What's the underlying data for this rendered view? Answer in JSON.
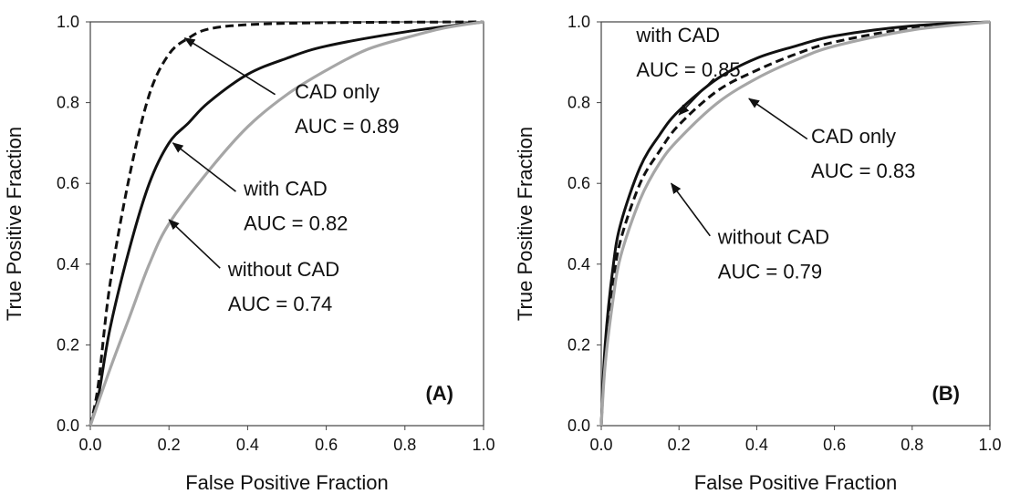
{
  "chart_data": [
    {
      "type": "line",
      "panel_label": "(A)",
      "xlabel": "False Positive Fraction",
      "ylabel": "True Positive Fraction",
      "xlim": [
        0,
        1
      ],
      "ylim": [
        0,
        1
      ],
      "x_ticks": [
        "0.0",
        "0.2",
        "0.4",
        "0.6",
        "0.8",
        "1.0"
      ],
      "y_ticks": [
        "0.0",
        "0.2",
        "0.4",
        "0.6",
        "0.8",
        "1.0"
      ],
      "grid": false,
      "series": [
        {
          "key": "cad-only",
          "style": "dashed",
          "color": "#111111",
          "points": [
            [
              0,
              0
            ],
            [
              0.02,
              0.1
            ],
            [
              0.05,
              0.35
            ],
            [
              0.1,
              0.62
            ],
            [
              0.15,
              0.82
            ],
            [
              0.2,
              0.92
            ],
            [
              0.25,
              0.96
            ],
            [
              0.3,
              0.982
            ],
            [
              0.4,
              0.993
            ],
            [
              0.6,
              0.998
            ],
            [
              1,
              1
            ]
          ]
        },
        {
          "key": "with-cad",
          "style": "solid",
          "color": "#111111",
          "points": [
            [
              0,
              0
            ],
            [
              0.02,
              0.07
            ],
            [
              0.05,
              0.24
            ],
            [
              0.1,
              0.44
            ],
            [
              0.15,
              0.6
            ],
            [
              0.2,
              0.7
            ],
            [
              0.25,
              0.75
            ],
            [
              0.3,
              0.8
            ],
            [
              0.4,
              0.87
            ],
            [
              0.5,
              0.91
            ],
            [
              0.6,
              0.94
            ],
            [
              0.8,
              0.975
            ],
            [
              1,
              1
            ]
          ]
        },
        {
          "key": "without-cad",
          "style": "solid",
          "color": "#a6a6a6",
          "points": [
            [
              0,
              0
            ],
            [
              0.05,
              0.14
            ],
            [
              0.1,
              0.27
            ],
            [
              0.15,
              0.4
            ],
            [
              0.2,
              0.5
            ],
            [
              0.3,
              0.63
            ],
            [
              0.4,
              0.74
            ],
            [
              0.5,
              0.82
            ],
            [
              0.6,
              0.88
            ],
            [
              0.7,
              0.93
            ],
            [
              0.8,
              0.96
            ],
            [
              0.9,
              0.985
            ],
            [
              1,
              1
            ]
          ]
        }
      ],
      "annotations": [
        {
          "name": "CAD only",
          "auc": "AUC = 0.89",
          "text_at": [
            0.52,
            0.81
          ],
          "arrow_from": [
            0.47,
            0.82
          ],
          "arrow_to": [
            0.24,
            0.96
          ]
        },
        {
          "name": "with CAD",
          "auc": "AUC = 0.82",
          "text_at": [
            0.39,
            0.57
          ],
          "arrow_from": [
            0.37,
            0.58
          ],
          "arrow_to": [
            0.21,
            0.7
          ]
        },
        {
          "name": "without CAD",
          "auc": "AUC = 0.74",
          "text_at": [
            0.35,
            0.37
          ],
          "arrow_from": [
            0.33,
            0.39
          ],
          "arrow_to": [
            0.2,
            0.51
          ]
        }
      ]
    },
    {
      "type": "line",
      "panel_label": "(B)",
      "xlabel": "False Positive Fraction",
      "ylabel": "True Positive Fraction",
      "xlim": [
        0,
        1
      ],
      "ylim": [
        0,
        1
      ],
      "x_ticks": [
        "0.0",
        "0.2",
        "0.4",
        "0.6",
        "0.8",
        "1.0"
      ],
      "y_ticks": [
        "0.0",
        "0.2",
        "0.4",
        "0.6",
        "0.8",
        "1.0"
      ],
      "grid": false,
      "series": [
        {
          "key": "with-cad",
          "style": "solid",
          "color": "#111111",
          "points": [
            [
              0,
              0
            ],
            [
              0.01,
              0.2
            ],
            [
              0.03,
              0.39
            ],
            [
              0.05,
              0.5
            ],
            [
              0.1,
              0.64
            ],
            [
              0.15,
              0.72
            ],
            [
              0.2,
              0.78
            ],
            [
              0.3,
              0.86
            ],
            [
              0.4,
              0.91
            ],
            [
              0.5,
              0.94
            ],
            [
              0.6,
              0.965
            ],
            [
              0.8,
              0.99
            ],
            [
              1,
              1
            ]
          ]
        },
        {
          "key": "cad-only",
          "style": "dashed",
          "color": "#111111",
          "points": [
            [
              0,
              0
            ],
            [
              0.01,
              0.17
            ],
            [
              0.03,
              0.35
            ],
            [
              0.05,
              0.46
            ],
            [
              0.1,
              0.6
            ],
            [
              0.15,
              0.68
            ],
            [
              0.2,
              0.745
            ],
            [
              0.3,
              0.83
            ],
            [
              0.4,
              0.88
            ],
            [
              0.5,
              0.92
            ],
            [
              0.6,
              0.95
            ],
            [
              0.8,
              0.985
            ],
            [
              1,
              1
            ]
          ]
        },
        {
          "key": "without-cad",
          "style": "solid",
          "color": "#a6a6a6",
          "points": [
            [
              0,
              0
            ],
            [
              0.01,
              0.15
            ],
            [
              0.03,
              0.31
            ],
            [
              0.05,
              0.42
            ],
            [
              0.1,
              0.56
            ],
            [
              0.15,
              0.65
            ],
            [
              0.2,
              0.71
            ],
            [
              0.3,
              0.8
            ],
            [
              0.4,
              0.86
            ],
            [
              0.5,
              0.905
            ],
            [
              0.6,
              0.94
            ],
            [
              0.8,
              0.98
            ],
            [
              1,
              1
            ]
          ]
        }
      ],
      "annotations": [
        {
          "name": "with CAD",
          "auc": "AUC = 0.85",
          "text_at": [
            0.09,
            0.95
          ],
          "arrow_from": [
            0.29,
            0.86
          ],
          "arrow_to": [
            0.2,
            0.77
          ]
        },
        {
          "name": "CAD only",
          "auc": "AUC = 0.83",
          "text_at": [
            0.54,
            0.7
          ],
          "arrow_from": [
            0.53,
            0.71
          ],
          "arrow_to": [
            0.38,
            0.81
          ]
        },
        {
          "name": "without CAD",
          "auc": "AUC = 0.79",
          "text_at": [
            0.3,
            0.45
          ],
          "arrow_from": [
            0.28,
            0.47
          ],
          "arrow_to": [
            0.18,
            0.6
          ]
        }
      ]
    }
  ]
}
